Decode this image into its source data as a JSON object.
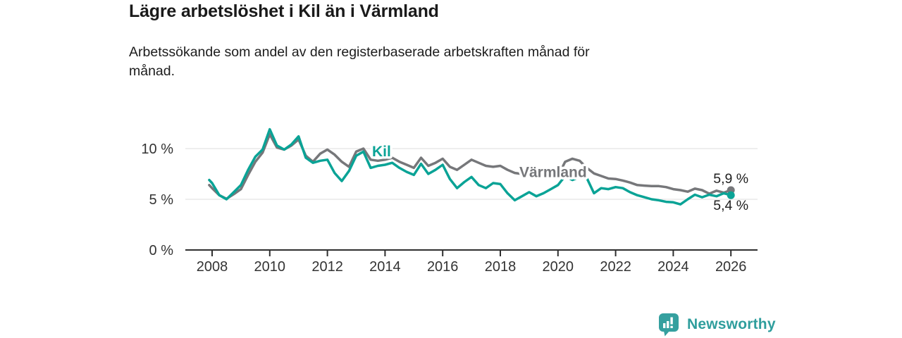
{
  "chart_data": {
    "type": "line",
    "title": "Lägre arbetslöshet i Kil än i Värmland",
    "subtitle": "Arbetssökande som andel av den registerbaserade arbetskraften månad för\nmånad.",
    "x": [
      2007.9,
      2008,
      2008.25,
      2008.5,
      2008.75,
      2009,
      2009.25,
      2009.5,
      2009.75,
      2010,
      2010.25,
      2010.5,
      2010.75,
      2011,
      2011.25,
      2011.5,
      2011.75,
      2012,
      2012.25,
      2012.5,
      2012.75,
      2013,
      2013.25,
      2013.5,
      2013.75,
      2014,
      2014.25,
      2014.5,
      2014.75,
      2015,
      2015.25,
      2015.5,
      2015.75,
      2016,
      2016.25,
      2016.5,
      2016.75,
      2017,
      2017.25,
      2017.5,
      2017.75,
      2018,
      2018.25,
      2018.5,
      2018.75,
      2019,
      2019.25,
      2019.5,
      2019.75,
      2020,
      2020.25,
      2020.5,
      2020.75,
      2021,
      2021.25,
      2021.5,
      2021.75,
      2022,
      2022.25,
      2022.5,
      2022.75,
      2023,
      2023.25,
      2023.5,
      2023.75,
      2024,
      2024.25,
      2024.5,
      2024.75,
      2025,
      2025.25,
      2025.5,
      2025.75,
      2026
    ],
    "x_ticks": [
      2008,
      2010,
      2012,
      2014,
      2016,
      2018,
      2020,
      2022,
      2024,
      2026
    ],
    "y_ticks": [
      {
        "value": 0,
        "label": "0 %"
      },
      {
        "value": 5,
        "label": "5 %"
      },
      {
        "value": 10,
        "label": "10 %"
      }
    ],
    "ylim": [
      0,
      12.5
    ],
    "grid": true,
    "unit": "%",
    "series": [
      {
        "name": "Värmland",
        "color": "#76777a",
        "end_label": "5,9 %",
        "label_anchor": {
          "year": 2018.66,
          "value": 7.2
        },
        "values": [
          6.4,
          6.1,
          5.4,
          5.05,
          5.5,
          6.0,
          7.4,
          8.7,
          9.6,
          11.4,
          10.1,
          9.9,
          10.3,
          10.9,
          9.3,
          8.7,
          9.5,
          9.9,
          9.4,
          8.7,
          8.2,
          9.7,
          10.0,
          8.9,
          8.8,
          8.9,
          9.1,
          8.7,
          8.4,
          8.1,
          9.1,
          8.3,
          8.6,
          9.0,
          8.2,
          7.9,
          8.4,
          8.9,
          8.6,
          8.3,
          8.2,
          8.3,
          7.9,
          7.6,
          7.5,
          7.8,
          7.5,
          7.3,
          7.1,
          7.3,
          8.7,
          9.0,
          8.8,
          8.1,
          7.55,
          7.3,
          7.05,
          7.0,
          6.85,
          6.65,
          6.4,
          6.35,
          6.3,
          6.3,
          6.2,
          6.0,
          5.9,
          5.75,
          6.05,
          5.9,
          5.55,
          5.85,
          5.65,
          5.9
        ]
      },
      {
        "name": "Kil",
        "color": "#0aa396",
        "end_label": "5,4 %",
        "label_anchor": {
          "year": 2013.55,
          "value": 9.25
        },
        "values": [
          6.9,
          6.6,
          5.4,
          5.0,
          5.7,
          6.4,
          7.9,
          9.2,
          9.9,
          11.9,
          10.3,
          9.9,
          10.4,
          11.2,
          9.1,
          8.6,
          8.8,
          8.9,
          7.6,
          6.8,
          7.8,
          9.3,
          9.7,
          8.1,
          8.3,
          8.4,
          8.6,
          8.1,
          7.7,
          7.4,
          8.5,
          7.5,
          7.9,
          8.4,
          7.0,
          6.1,
          6.7,
          7.2,
          6.4,
          6.1,
          6.6,
          6.5,
          5.6,
          4.9,
          5.3,
          5.7,
          5.3,
          5.6,
          6.0,
          6.4,
          7.3,
          6.9,
          7.2,
          7.1,
          5.6,
          6.1,
          6.0,
          6.2,
          6.1,
          5.7,
          5.4,
          5.2,
          5.0,
          4.9,
          4.75,
          4.7,
          4.5,
          5.0,
          5.45,
          5.2,
          5.45,
          5.3,
          5.6,
          5.4
        ]
      }
    ],
    "colors": {
      "kil": "#0aa396",
      "varmland": "#76777a",
      "axis_text": "#333333",
      "grid": "#dcdcdc",
      "axis_line": "#2f2f2f",
      "end_label_text": "#1f1f1f"
    }
  },
  "footer": {
    "brand": "Newsworthy",
    "logo_icon": "bar-chart-pin-icon",
    "brand_color": "#2f9e9d"
  }
}
